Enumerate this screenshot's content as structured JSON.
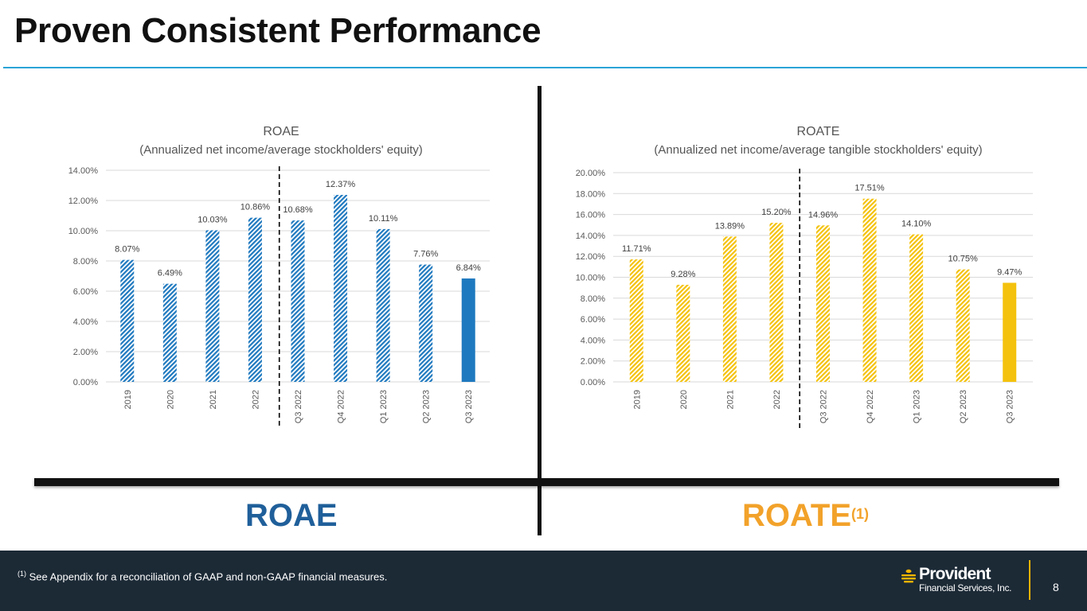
{
  "title": "Proven Consistent Performance",
  "left_label": "ROAE",
  "right_label": "ROATE",
  "right_label_sup": "(1)",
  "footnote_marker": "(1)",
  "footnote_text": " See Appendix for a reconciliation of GAAP and non-GAAP financial measures.",
  "logo_name": "Provident",
  "logo_sub": "Financial Services, Inc.",
  "page_number": "8",
  "colors": {
    "roae": "#1f79bf",
    "roate": "#f4c20d",
    "title_rule": "#2aa3d6",
    "footer": "#1c2a36"
  },
  "chart_data": [
    {
      "type": "bar",
      "title": "ROAE",
      "subtitle": "(Annualized net income/average stockholders' equity)",
      "categories": [
        "2019",
        "2020",
        "2021",
        "2022",
        "Q3 2022",
        "Q4 2022",
        "Q1 2023",
        "Q2 2023",
        "Q3 2023"
      ],
      "values": [
        8.07,
        6.49,
        10.03,
        10.86,
        10.68,
        12.37,
        10.11,
        7.76,
        6.84
      ],
      "data_labels": [
        "8.07%",
        "6.49%",
        "10.03%",
        "10.86%",
        "10.68%",
        "12.37%",
        "10.11%",
        "7.76%",
        "6.84%"
      ],
      "ylim": [
        0,
        14
      ],
      "yticks": [
        0,
        2,
        4,
        6,
        8,
        10,
        12,
        14
      ],
      "ytick_labels": [
        "0.00%",
        "2.00%",
        "4.00%",
        "6.00%",
        "8.00%",
        "10.00%",
        "12.00%",
        "14.00%"
      ],
      "highlight": "Q3 2023",
      "divider_after": "2022",
      "grid": true
    },
    {
      "type": "bar",
      "title": "ROATE",
      "subtitle": "(Annualized net income/average tangible stockholders' equity)",
      "categories": [
        "2019",
        "2020",
        "2021",
        "2022",
        "Q3 2022",
        "Q4 2022",
        "Q1 2023",
        "Q2 2023",
        "Q3 2023"
      ],
      "values": [
        11.71,
        9.28,
        13.89,
        15.2,
        14.96,
        17.51,
        14.1,
        10.75,
        9.47
      ],
      "data_labels": [
        "11.71%",
        "9.28%",
        "13.89%",
        "15.20%",
        "14.96%",
        "17.51%",
        "14.10%",
        "10.75%",
        "9.47%"
      ],
      "ylim": [
        0,
        20
      ],
      "yticks": [
        0,
        2,
        4,
        6,
        8,
        10,
        12,
        14,
        16,
        18,
        20
      ],
      "ytick_labels": [
        "0.00%",
        "2.00%",
        "4.00%",
        "6.00%",
        "8.00%",
        "10.00%",
        "12.00%",
        "14.00%",
        "16.00%",
        "18.00%",
        "20.00%"
      ],
      "highlight": "Q3 2023",
      "divider_after": "2022",
      "grid": true
    }
  ]
}
